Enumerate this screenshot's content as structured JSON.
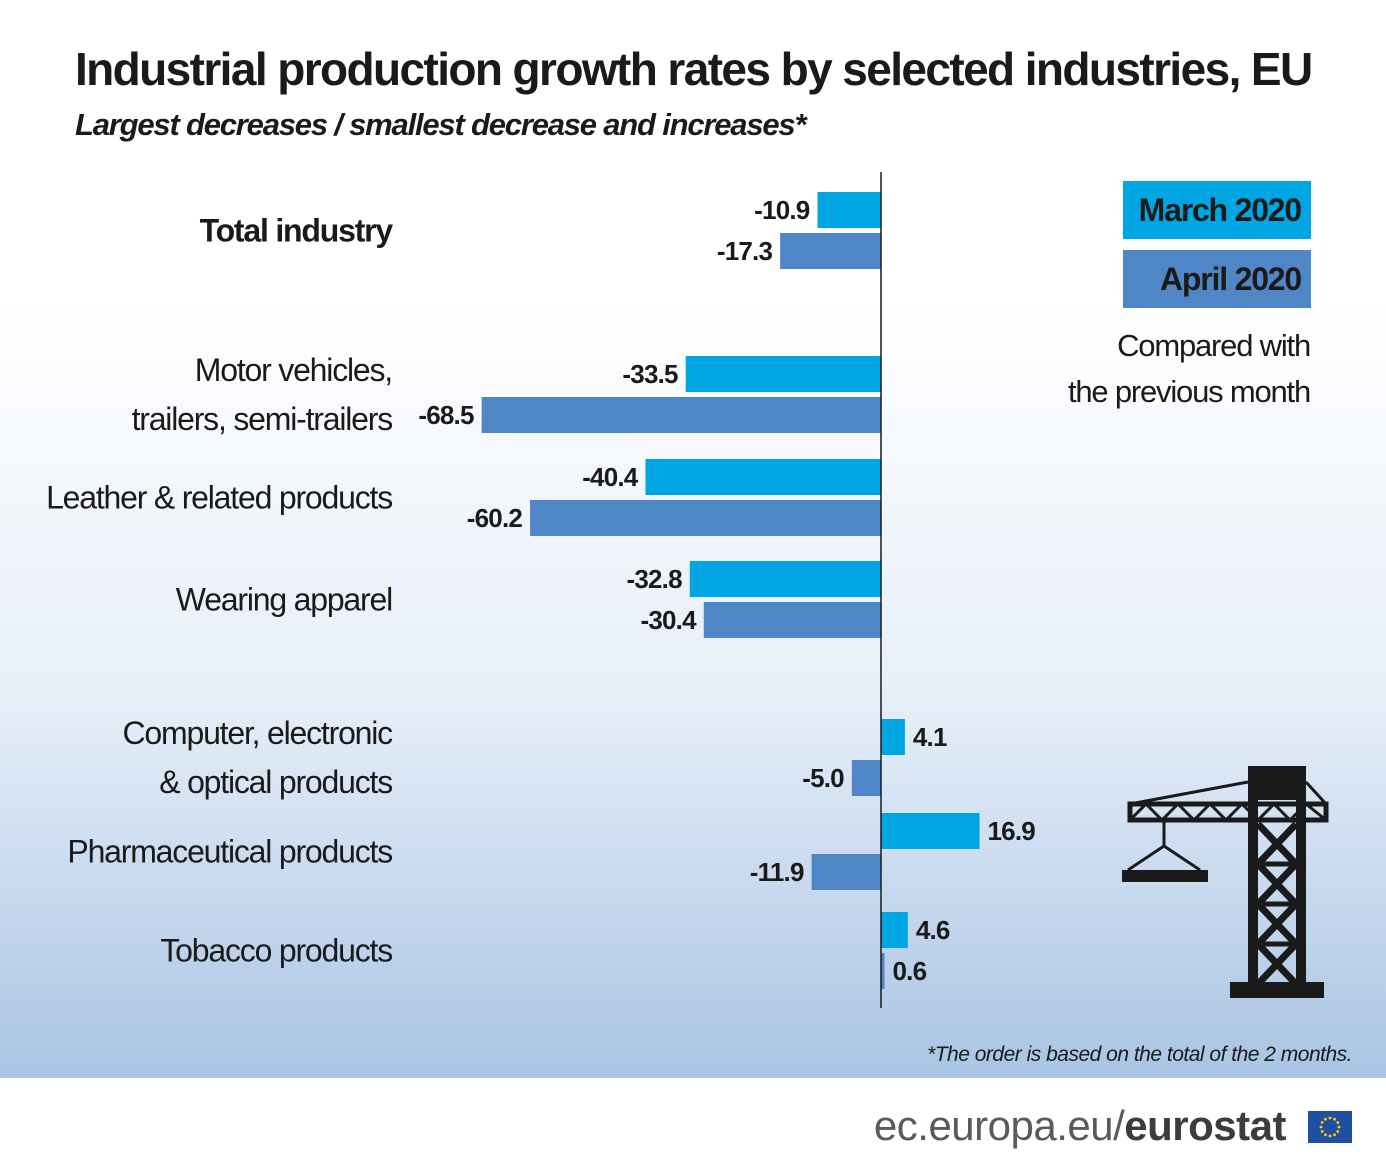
{
  "title": "Industrial production growth rates by selected industries, EU",
  "subtitle": "Largest decreases / smallest decrease and increases*",
  "legend": {
    "series1": "March 2020",
    "series2": "April 2020",
    "note_line1": "Compared with",
    "note_line2": "the previous month"
  },
  "footnote": "*The order is based on the total of the 2 months.",
  "brand": {
    "domain": "ec.europa.eu/",
    "name": "eurostat"
  },
  "colors": {
    "march": "#00a6e2",
    "april": "#4f86c6",
    "axis": "#1a1a1a",
    "text": "#1a1a1a"
  },
  "icons": [
    "crane-icon",
    "eu-flag-icon"
  ],
  "chart_data": {
    "type": "bar",
    "orientation": "horizontal",
    "categories": [
      [
        "Total industry"
      ],
      [
        "Motor vehicles,",
        "trailers, semi-trailers"
      ],
      [
        "Leather & related products"
      ],
      [
        "Wearing apparel"
      ],
      [
        "Computer, electronic",
        "& optical products"
      ],
      [
        "Pharmaceutical products"
      ],
      [
        "Tobacco products"
      ]
    ],
    "series": [
      {
        "name": "March 2020",
        "values": [
          -10.9,
          -33.5,
          -40.4,
          -32.8,
          4.1,
          16.9,
          4.6
        ]
      },
      {
        "name": "April 2020",
        "values": [
          -17.3,
          -68.5,
          -60.2,
          -30.4,
          -5.0,
          -11.9,
          0.6
        ]
      }
    ],
    "value_labels": [
      [
        "-10.9",
        "-33.5",
        "-40.4",
        "-32.8",
        "4.1",
        "16.9",
        "4.6"
      ],
      [
        "-17.3",
        "-68.5",
        "-60.2",
        "-30.4",
        "-5.0",
        "-11.9",
        "0.6"
      ]
    ],
    "bold_category": 0,
    "legend_position": "top-right",
    "grid": false
  }
}
